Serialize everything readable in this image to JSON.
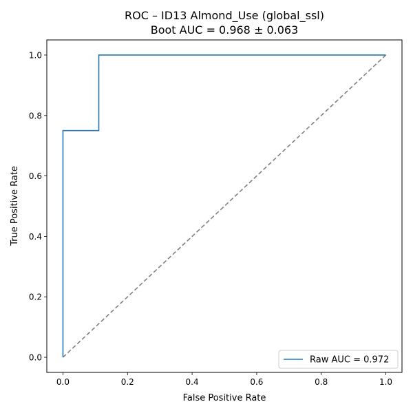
{
  "chart_data": {
    "type": "line",
    "title": "ROC – ID13 Almond_Use (global_ssl)",
    "subtitle": "Boot AUC = 0.968 ± 0.063",
    "xlabel": "False Positive Rate",
    "ylabel": "True Positive Rate",
    "xlim": [
      -0.05,
      1.05
    ],
    "ylim": [
      -0.05,
      1.05
    ],
    "xticks": [
      "0.0",
      "0.2",
      "0.4",
      "0.6",
      "0.8",
      "1.0"
    ],
    "yticks": [
      "0.0",
      "0.2",
      "0.4",
      "0.6",
      "0.8",
      "1.0"
    ],
    "grid": false,
    "legend_position": "lower-right",
    "series": [
      {
        "name": "Raw AUC = 0.972",
        "color": "#1f77b4",
        "style": "solid",
        "x": [
          0.0,
          0.0,
          0.111,
          0.111,
          1.0
        ],
        "y": [
          0.0,
          0.75,
          0.75,
          1.0,
          1.0
        ]
      }
    ],
    "reference_line": {
      "color": "#808080",
      "style": "dashed",
      "x": [
        0.0,
        1.0
      ],
      "y": [
        0.0,
        1.0
      ]
    }
  }
}
